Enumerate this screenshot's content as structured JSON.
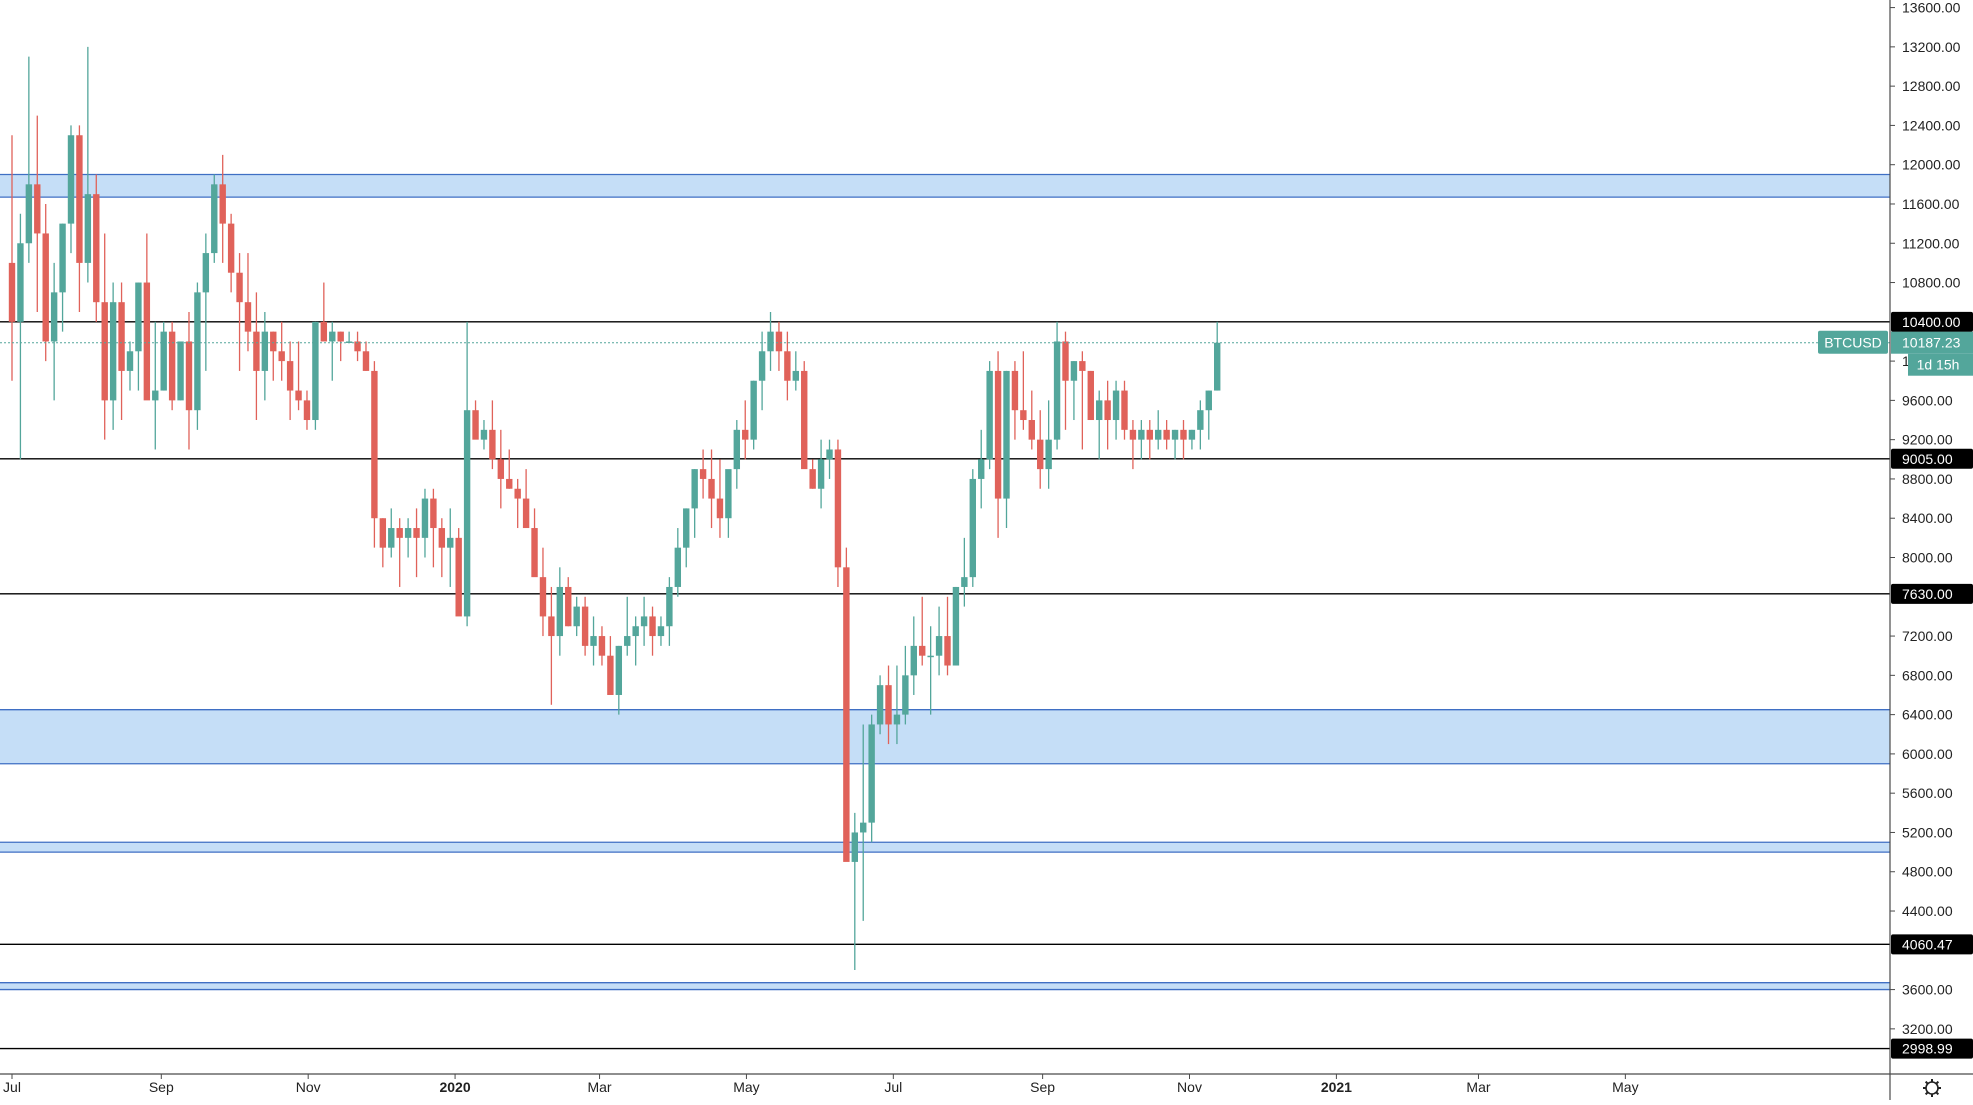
{
  "chart_data": {
    "type": "candlestick",
    "symbol": "BTCUSD",
    "interval": "1W",
    "y_axis": {
      "range": [
        2900,
        13700
      ],
      "ticks": [
        3200,
        3600,
        4000,
        4400,
        4800,
        5200,
        5600,
        6000,
        6400,
        6800,
        7200,
        7600,
        8000,
        8400,
        8800,
        9200,
        9600,
        10000,
        10400,
        10800,
        11200,
        11600,
        12000,
        12400,
        12800,
        13200,
        13600
      ],
      "tick_labels": [
        "3200.00",
        "3600.00",
        "4000.00",
        "4400.00",
        "4800.00",
        "5200.00",
        "5600.00",
        "6000.00",
        "6400.00",
        "6800.00",
        "7200.00",
        "7600.00",
        "8000.00",
        "8400.00",
        "8800.00",
        "9200.00",
        "9600.00",
        "10000.00",
        "10400.00",
        "10800.00",
        "11200.00",
        "11600.00",
        "12000.00",
        "12400.00",
        "12800.00",
        "13200.00",
        "13600.00"
      ]
    },
    "x_axis": {
      "range": [
        "2019-07-01",
        "2021-06-10"
      ],
      "labels": [
        {
          "date": "2019-07-01",
          "label": "Jul",
          "bold": false
        },
        {
          "date": "2019-09-01",
          "label": "Sep",
          "bold": false
        },
        {
          "date": "2019-11-01",
          "label": "Nov",
          "bold": false
        },
        {
          "date": "2020-01-01",
          "label": "2020",
          "bold": true
        },
        {
          "date": "2020-03-01",
          "label": "Mar",
          "bold": false
        },
        {
          "date": "2020-05-01",
          "label": "May",
          "bold": false
        },
        {
          "date": "2020-07-01",
          "label": "Jul",
          "bold": false
        },
        {
          "date": "2020-09-01",
          "label": "Sep",
          "bold": false
        },
        {
          "date": "2020-11-01",
          "label": "Nov",
          "bold": false
        },
        {
          "date": "2021-01-01",
          "label": "2021",
          "bold": true
        },
        {
          "date": "2021-03-01",
          "label": "Mar",
          "bold": false
        },
        {
          "date": "2021-05-01",
          "label": "May",
          "bold": false
        }
      ]
    },
    "candles_start": "2019-07-01",
    "candle_step_days": 3.5,
    "candles_ohlc": [
      [
        11000,
        12300,
        9800,
        10400
      ],
      [
        10400,
        11500,
        9000,
        11200
      ],
      [
        11200,
        13100,
        11000,
        11800
      ],
      [
        11800,
        12500,
        10500,
        11300
      ],
      [
        11300,
        11600,
        10000,
        10200
      ],
      [
        10200,
        11000,
        9600,
        10700
      ],
      [
        10700,
        11400,
        10300,
        11400
      ],
      [
        11400,
        12400,
        11100,
        12300
      ],
      [
        12300,
        12400,
        10500,
        11000
      ],
      [
        11000,
        13200,
        10800,
        11700
      ],
      [
        11700,
        11900,
        10400,
        10600
      ],
      [
        10600,
        11300,
        9200,
        9600
      ],
      [
        9600,
        10800,
        9300,
        10600
      ],
      [
        10600,
        10800,
        9400,
        9900
      ],
      [
        9900,
        10200,
        9700,
        10100
      ],
      [
        10100,
        10800,
        9700,
        10800
      ],
      [
        10800,
        11300,
        9700,
        9600
      ],
      [
        9600,
        10400,
        9100,
        9700
      ],
      [
        9700,
        10400,
        9700,
        10300
      ],
      [
        10300,
        10400,
        9500,
        9600
      ],
      [
        9600,
        10100,
        9600,
        10200
      ],
      [
        10200,
        10500,
        9100,
        9500
      ],
      [
        9500,
        10800,
        9300,
        10700
      ],
      [
        10700,
        11300,
        9900,
        11100
      ],
      [
        11100,
        11900,
        11000,
        11800
      ],
      [
        11800,
        12100,
        11000,
        11400
      ],
      [
        11400,
        11500,
        10700,
        10900
      ],
      [
        10900,
        11100,
        9900,
        10600
      ],
      [
        10600,
        11100,
        10100,
        10300
      ],
      [
        10300,
        10700,
        9400,
        9900
      ],
      [
        9900,
        10500,
        9600,
        10300
      ],
      [
        10300,
        10300,
        9800,
        10100
      ],
      [
        10100,
        10400,
        9800,
        10000
      ],
      [
        10000,
        10200,
        9400,
        9700
      ],
      [
        9700,
        10200,
        9500,
        9600
      ],
      [
        9600,
        9700,
        9300,
        9400
      ],
      [
        9400,
        10400,
        9300,
        10400
      ],
      [
        10400,
        10800,
        10300,
        10200
      ],
      [
        10200,
        10400,
        9800,
        10300
      ],
      [
        10300,
        10300,
        10000,
        10200
      ],
      [
        10200,
        10300,
        10200,
        10200
      ],
      [
        10200,
        10300,
        10000,
        10100
      ],
      [
        10100,
        10200,
        9900,
        9900
      ],
      [
        9900,
        10000,
        8100,
        8400
      ],
      [
        8400,
        8400,
        7900,
        8100
      ],
      [
        8100,
        8500,
        8000,
        8300
      ],
      [
        8300,
        8400,
        7700,
        8200
      ],
      [
        8200,
        8400,
        8000,
        8300
      ],
      [
        8300,
        8500,
        7800,
        8200
      ],
      [
        8200,
        8700,
        8000,
        8600
      ],
      [
        8600,
        8700,
        7900,
        8300
      ],
      [
        8300,
        8400,
        7800,
        8100
      ],
      [
        8100,
        8500,
        7700,
        8200
      ],
      [
        8200,
        8300,
        7600,
        7400
      ],
      [
        7400,
        10400,
        7300,
        9500
      ],
      [
        9500,
        9600,
        9300,
        9200
      ],
      [
        9200,
        9400,
        9100,
        9300
      ],
      [
        9300,
        9600,
        8900,
        9000
      ],
      [
        9000,
        9300,
        8500,
        8800
      ],
      [
        8800,
        9100,
        8700,
        8700
      ],
      [
        8700,
        8800,
        8300,
        8600
      ],
      [
        8600,
        8900,
        8500,
        8300
      ],
      [
        8300,
        8500,
        7900,
        7800
      ],
      [
        7800,
        8100,
        7200,
        7400
      ],
      [
        7400,
        7700,
        6500,
        7200
      ],
      [
        7200,
        7900,
        7000,
        7700
      ],
      [
        7700,
        7800,
        7300,
        7300
      ],
      [
        7300,
        7600,
        7200,
        7500
      ],
      [
        7500,
        7600,
        7000,
        7100
      ],
      [
        7100,
        7400,
        6900,
        7200
      ],
      [
        7200,
        7300,
        6900,
        7000
      ],
      [
        7000,
        7200,
        6700,
        6600
      ],
      [
        6600,
        7100,
        6400,
        7100
      ],
      [
        7100,
        7600,
        7000,
        7200
      ],
      [
        7200,
        7400,
        6900,
        7300
      ],
      [
        7300,
        7600,
        7100,
        7400
      ],
      [
        7400,
        7500,
        7000,
        7200
      ],
      [
        7200,
        7400,
        7100,
        7300
      ],
      [
        7300,
        7800,
        7100,
        7700
      ],
      [
        7700,
        8300,
        7600,
        8100
      ],
      [
        8100,
        8500,
        7900,
        8500
      ],
      [
        8500,
        8900,
        8200,
        8900
      ],
      [
        8900,
        9100,
        8600,
        8800
      ],
      [
        8800,
        9100,
        8300,
        8600
      ],
      [
        8600,
        9000,
        8200,
        8400
      ],
      [
        8400,
        8800,
        8200,
        8900
      ],
      [
        8900,
        9400,
        8700,
        9300
      ],
      [
        9300,
        9600,
        9000,
        9200
      ],
      [
        9200,
        9800,
        9100,
        9800
      ],
      [
        9800,
        10300,
        9500,
        10100
      ],
      [
        10100,
        10500,
        9900,
        10300
      ],
      [
        10300,
        10400,
        9900,
        10100
      ],
      [
        10100,
        10300,
        9600,
        9800
      ],
      [
        9800,
        10100,
        9700,
        9900
      ],
      [
        9900,
        10000,
        9200,
        8900
      ],
      [
        8900,
        9000,
        8700,
        8700
      ],
      [
        8700,
        9200,
        8500,
        9000
      ],
      [
        9000,
        9200,
        8800,
        9100
      ],
      [
        9100,
        9200,
        7700,
        7900
      ],
      [
        7900,
        8100,
        5000,
        4900
      ],
      [
        4900,
        5400,
        3800,
        5200
      ],
      [
        5200,
        6300,
        4300,
        5300
      ],
      [
        5300,
        6400,
        5100,
        6300
      ],
      [
        6300,
        6800,
        6200,
        6700
      ],
      [
        6700,
        6900,
        6100,
        6300
      ],
      [
        6300,
        6900,
        6100,
        6400
      ],
      [
        6400,
        7100,
        6300,
        6800
      ],
      [
        6800,
        7400,
        6600,
        7100
      ],
      [
        7100,
        7600,
        6900,
        7000
      ],
      [
        7000,
        7300,
        6400,
        7000
      ],
      [
        7000,
        7500,
        6800,
        7200
      ],
      [
        7200,
        7600,
        6800,
        6900
      ],
      [
        6900,
        7700,
        6900,
        7700
      ],
      [
        7700,
        8200,
        7500,
        7800
      ],
      [
        7800,
        8900,
        7700,
        8800
      ],
      [
        8800,
        9300,
        8500,
        9000
      ],
      [
        9000,
        10000,
        8900,
        9900
      ],
      [
        9900,
        10100,
        8200,
        8600
      ],
      [
        8600,
        9900,
        8300,
        9900
      ],
      [
        9900,
        10000,
        9200,
        9500
      ],
      [
        9500,
        10100,
        9300,
        9400
      ],
      [
        9400,
        9700,
        9100,
        9200
      ],
      [
        9200,
        9500,
        8700,
        8900
      ],
      [
        8900,
        9600,
        8700,
        9200
      ],
      [
        9200,
        10400,
        9100,
        10200
      ],
      [
        10200,
        10300,
        9300,
        9800
      ],
      [
        9800,
        10000,
        9400,
        10000
      ],
      [
        10000,
        10100,
        9100,
        9900
      ],
      [
        9900,
        9900,
        9400,
        9400
      ],
      [
        9400,
        9700,
        9000,
        9600
      ],
      [
        9600,
        9800,
        9100,
        9400
      ],
      [
        9400,
        9800,
        9200,
        9700
      ],
      [
        9700,
        9800,
        9200,
        9300
      ],
      [
        9300,
        9400,
        8900,
        9200
      ],
      [
        9200,
        9400,
        9000,
        9300
      ],
      [
        9300,
        9400,
        9000,
        9200
      ],
      [
        9200,
        9500,
        9100,
        9300
      ],
      [
        9300,
        9400,
        9100,
        9200
      ],
      [
        9200,
        9300,
        9000,
        9300
      ],
      [
        9300,
        9400,
        9000,
        9200
      ],
      [
        9200,
        9300,
        9100,
        9300
      ],
      [
        9300,
        9600,
        9100,
        9500
      ],
      [
        9500,
        9700,
        9200,
        9700
      ],
      [
        9700,
        10400,
        9700,
        10187
      ]
    ],
    "horizontal_levels": [
      {
        "price": 10400,
        "label": "10400.00"
      },
      {
        "price": 9005,
        "label": "9005.00"
      },
      {
        "price": 7630,
        "label": "7630.00"
      },
      {
        "price": 4060.47,
        "label": "4060.47"
      },
      {
        "price": 2998.99,
        "label": "2998.99"
      }
    ],
    "zones": [
      {
        "from": 11670,
        "to": 11900
      },
      {
        "from": 5900,
        "to": 6450
      },
      {
        "from": 5000,
        "to": 5100
      },
      {
        "from": 3600,
        "to": 3670
      }
    ],
    "last_price": {
      "value": 10187.23,
      "label": "10187.23",
      "symbol_label": "BTCUSD",
      "countdown": "1d 15h"
    },
    "colors": {
      "up": "#53a69b",
      "down": "#e0625a",
      "zone_fill": "#c5def7",
      "zone_border": "#3f6fc4",
      "level_line": "#000000",
      "last_price": "#53a69b",
      "axis_text": "#222222"
    },
    "grid": false
  },
  "toolbar": {
    "settings_icon": "gear-icon"
  }
}
